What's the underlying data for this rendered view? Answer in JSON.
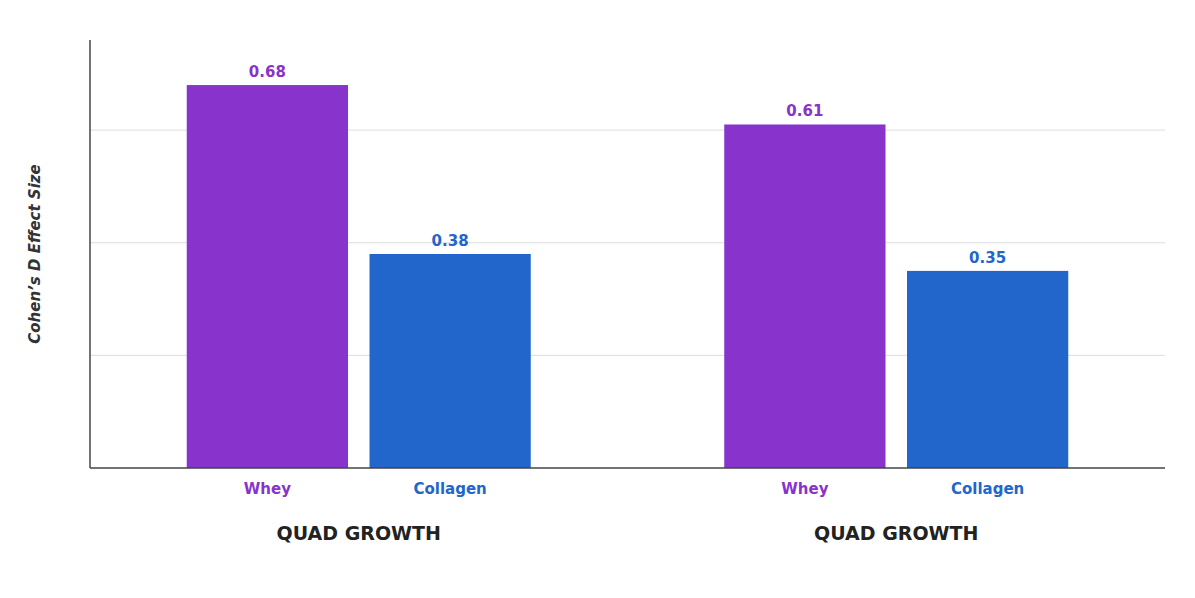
{
  "chart_data": {
    "type": "bar",
    "ylabel": "Cohen’s D Effect Size",
    "categories": [
      "QUAD GROWTH",
      "QUAD GROWTH"
    ],
    "series": [
      {
        "name": "Whey",
        "color": "#8833cc",
        "values": [
          0.68,
          0.61
        ]
      },
      {
        "name": "Collagen",
        "color": "#2266cc",
        "values": [
          0.38,
          0.35
        ]
      }
    ],
    "ylim": [
      0,
      0.76
    ],
    "yticks": [
      0.2,
      0.4,
      0.6
    ],
    "grid": true,
    "data_labels": true,
    "tick_labels": "x"
  }
}
